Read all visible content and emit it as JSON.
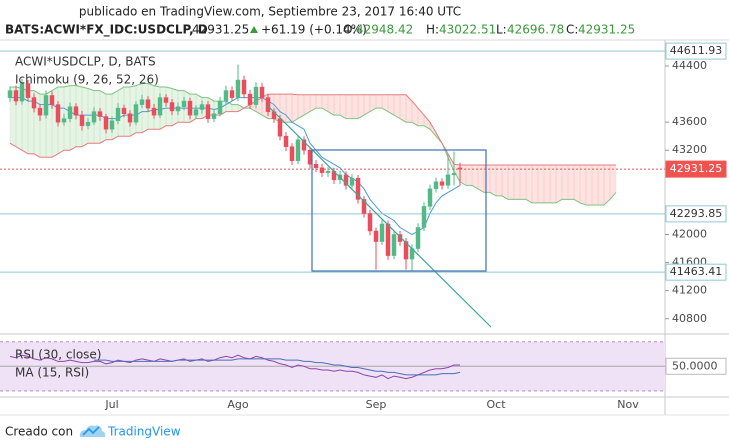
{
  "header": {
    "title": "publicado en TradingView.com, Septiembre 23, 2017 16:40 UTC",
    "symbol": "BATS:ACWI*FX_IDC:USDCLP, D",
    "last": 42931.25,
    "change": "+61.19 (+0.14%)",
    "ohlc": [
      {
        "label": "O:",
        "value": 42948.42
      },
      {
        "label": "H:",
        "value": 43022.51
      },
      {
        "label": "L:",
        "value": 42696.78
      },
      {
        "label": "C:",
        "value": 42931.25
      }
    ]
  },
  "chart_data": {
    "type": "candlestick",
    "title": "ACWI*USDCLP, D, BATS",
    "categories": [
      null,
      null,
      null,
      null,
      null,
      null,
      null,
      null,
      null,
      null,
      null,
      null,
      null,
      null,
      null,
      null,
      null,
      "Jul",
      null,
      null,
      null,
      null,
      null,
      null,
      null,
      null,
      null,
      null,
      null,
      null,
      null,
      null,
      null,
      null,
      null,
      null,
      null,
      null,
      "Ago",
      null,
      null,
      null,
      null,
      null,
      null,
      null,
      null,
      null,
      null,
      null,
      null,
      null,
      null,
      null,
      null,
      null,
      null,
      null,
      null,
      null,
      null,
      "Sep",
      null,
      null,
      null,
      null,
      null,
      null,
      null,
      null,
      null,
      null,
      null,
      null,
      null,
      null,
      null,
      null,
      null,
      null,
      null,
      "Oct",
      null,
      null,
      null,
      null,
      null,
      null,
      null,
      null,
      null,
      null,
      null,
      null,
      null,
      null,
      null,
      null,
      null,
      null,
      null,
      null,
      null,
      "Nov"
    ],
    "ohlc": [
      [
        43950,
        44110,
        43890,
        44050
      ],
      [
        44050,
        44120,
        43840,
        43900
      ],
      [
        43900,
        44220,
        43850,
        44150
      ],
      [
        44150,
        44200,
        43900,
        43950
      ],
      [
        43950,
        44010,
        43740,
        43800
      ],
      [
        43800,
        43860,
        43620,
        43700
      ],
      [
        43700,
        44050,
        43650,
        43980
      ],
      [
        43980,
        44040,
        43790,
        43850
      ],
      [
        43850,
        43900,
        43540,
        43600
      ],
      [
        43600,
        43720,
        43550,
        43650
      ],
      [
        43650,
        43880,
        43600,
        43820
      ],
      [
        43820,
        43870,
        43640,
        43700
      ],
      [
        43700,
        43760,
        43480,
        43550
      ],
      [
        43550,
        43660,
        43500,
        43600
      ],
      [
        43600,
        43810,
        43560,
        43750
      ],
      [
        43750,
        43800,
        43620,
        43680
      ],
      [
        43680,
        43720,
        43440,
        43500
      ],
      [
        43500,
        43680,
        43450,
        43620
      ],
      [
        43620,
        43870,
        43570,
        43800
      ],
      [
        43800,
        43850,
        43670,
        43720
      ],
      [
        43720,
        43770,
        43540,
        43600
      ],
      [
        43600,
        43900,
        43560,
        43850
      ],
      [
        43850,
        43990,
        43800,
        43920
      ],
      [
        43920,
        43970,
        43750,
        43800
      ],
      [
        43800,
        43860,
        43650,
        43700
      ],
      [
        43700,
        44010,
        43660,
        43950
      ],
      [
        43950,
        44000,
        43820,
        43880
      ],
      [
        43880,
        43930,
        43700,
        43760
      ],
      [
        43760,
        43880,
        43700,
        43820
      ],
      [
        43820,
        43960,
        43770,
        43900
      ],
      [
        43900,
        43950,
        43640,
        43700
      ],
      [
        43700,
        43840,
        43650,
        43780
      ],
      [
        43780,
        43910,
        43720,
        43850
      ],
      [
        43850,
        43900,
        43590,
        43650
      ],
      [
        43650,
        43790,
        43600,
        43720
      ],
      [
        43720,
        43960,
        43680,
        43900
      ],
      [
        43900,
        44120,
        43850,
        44050
      ],
      [
        44050,
        44110,
        43900,
        43950
      ],
      [
        43950,
        44420,
        43900,
        44200
      ],
      [
        44200,
        44260,
        43940,
        44000
      ],
      [
        44000,
        44060,
        43790,
        43850
      ],
      [
        43850,
        44170,
        43800,
        44100
      ],
      [
        44100,
        44160,
        43890,
        43950
      ],
      [
        43950,
        44000,
        43690,
        43750
      ],
      [
        43750,
        43800,
        43590,
        43650
      ],
      [
        43650,
        43700,
        43340,
        43400
      ],
      [
        43400,
        43460,
        43190,
        43250
      ],
      [
        43250,
        43300,
        42990,
        43050
      ],
      [
        43050,
        43410,
        43000,
        43350
      ],
      [
        43350,
        43400,
        43140,
        43200
      ],
      [
        43200,
        43250,
        42940,
        43000
      ],
      [
        43000,
        43060,
        42890,
        42950
      ],
      [
        42950,
        43010,
        42820,
        42880
      ],
      [
        42880,
        42960,
        42820,
        42900
      ],
      [
        42900,
        42950,
        42720,
        42780
      ],
      [
        42780,
        42910,
        42720,
        42850
      ],
      [
        42850,
        42900,
        42640,
        42700
      ],
      [
        42700,
        42860,
        42650,
        42800
      ],
      [
        42800,
        42850,
        42440,
        42500
      ],
      [
        42500,
        42550,
        42240,
        42300
      ],
      [
        42300,
        42350,
        41990,
        42050
      ],
      [
        42050,
        42100,
        41500,
        41900
      ],
      [
        41900,
        42210,
        41850,
        42150
      ],
      [
        42150,
        42200,
        41640,
        41700
      ],
      [
        41700,
        42060,
        41650,
        42000
      ],
      [
        42000,
        42050,
        41840,
        41900
      ],
      [
        41900,
        41950,
        41500,
        41650
      ],
      [
        41650,
        41860,
        41480,
        41800
      ],
      [
        41800,
        42160,
        41750,
        42100
      ],
      [
        42100,
        42460,
        42050,
        42400
      ],
      [
        42400,
        42710,
        42350,
        42650
      ],
      [
        42650,
        42810,
        42600,
        42750
      ],
      [
        42750,
        42800,
        42640,
        42700
      ],
      [
        42700,
        43150,
        42650,
        42850
      ],
      [
        42850,
        43180,
        42700,
        42870.06
      ],
      [
        42948.42,
        43022.51,
        42696.78,
        42931.25
      ],
      null,
      null,
      null,
      null,
      null,
      null,
      null,
      null,
      null,
      null,
      null,
      null,
      null,
      null,
      null,
      null,
      null,
      null,
      null,
      null,
      null,
      null,
      null,
      null,
      null,
      null,
      null,
      null
    ],
    "up_color": "#53b987",
    "down_color": "#eb4d5c",
    "ylim": [
      40640,
      44770
    ],
    "yticks": [
      44400,
      43600,
      43200,
      42000,
      41600,
      41200,
      40800
    ],
    "grid": false,
    "price_lines": [
      {
        "value": 44611.93,
        "color": "#8fc9d8",
        "label_fill": "#ffffff",
        "text_color": "#333333",
        "dashed": false
      },
      {
        "value": 42931.25,
        "color": "#ef5350",
        "label_fill": "#ef5350",
        "text_color": "#ffffff",
        "dashed": true
      },
      {
        "value": 42293.85,
        "color": "#8fc9d8",
        "label_fill": "#ffffff",
        "text_color": "#333333",
        "dashed": false
      },
      {
        "value": 41463.41,
        "color": "#8fc9d8",
        "label_fill": "#ffffff",
        "text_color": "#333333",
        "dashed": false
      }
    ],
    "indicator": {
      "name": "Ichimoku (9, 26, 52, 26)",
      "fill_up": "rgba(76,175,80,0.14)",
      "fill_down": "rgba(244,67,54,0.14)",
      "conversion": {
        "color": "#4a9bd8",
        "values": [
          43950,
          43950,
          43950,
          43900,
          43900,
          43850,
          43850,
          43850,
          43800,
          43800,
          43750,
          43700,
          43700,
          43700,
          43700,
          43700,
          43650,
          43650,
          43650,
          43700,
          43700,
          43700,
          43750,
          43750,
          43780,
          43780,
          43800,
          43800,
          43800,
          43800,
          43800,
          43800,
          43800,
          43800,
          43780,
          43800,
          43850,
          43900,
          43950,
          43950,
          43950,
          43950,
          43950,
          43900,
          43850,
          43750,
          43700,
          43600,
          43550,
          43500,
          43300,
          43200,
          43100,
          43050,
          43000,
          42950,
          42850,
          42800,
          42750,
          42650,
          42500,
          42400,
          42300,
          42250,
          42200,
          42100,
          42050,
          42000,
          42050,
          42100,
          42300,
          42450,
          42550,
          42600,
          42650,
          42700,
          null,
          null,
          null,
          null,
          null,
          null,
          null,
          null,
          null,
          null,
          null,
          null,
          null,
          null,
          null,
          null,
          null,
          null,
          null,
          null,
          null,
          null,
          null,
          null,
          null,
          null,
          null,
          null
        ]
      },
      "lead_a": {
        "color": "#7cc57c",
        "values": [
          44100,
          44100,
          44080,
          44050,
          44050,
          44000,
          44000,
          44050,
          44100,
          44100,
          44120,
          44120,
          44100,
          44080,
          44050,
          44050,
          44000,
          44000,
          44050,
          44100,
          44100,
          44120,
          44150,
          44150,
          44120,
          44100,
          44100,
          44080,
          44050,
          44050,
          44000,
          44000,
          43950,
          43950,
          43900,
          43900,
          43900,
          43850,
          43850,
          43800,
          43800,
          43750,
          43700,
          43650,
          43650,
          43600,
          43600,
          43600,
          43650,
          43700,
          43750,
          43800,
          43800,
          43750,
          43700,
          43700,
          43650,
          43650,
          43650,
          43700,
          43750,
          43800,
          43800,
          43750,
          43700,
          43650,
          43600,
          43600,
          43550,
          43550,
          43500,
          43400,
          43300,
          43100,
          42900,
          42750,
          42700,
          42700,
          42650,
          42600,
          42600,
          42550,
          42550,
          42500,
          42500,
          42500,
          42500,
          42450,
          42450,
          42450,
          42450,
          42450,
          42500,
          42500,
          42500,
          42450,
          42420,
          42420,
          42420,
          42420,
          42500,
          42600,
          null,
          null
        ]
      },
      "lead_b": {
        "color": "#e57b7b",
        "values": [
          43300,
          43250,
          43200,
          43150,
          43150,
          43100,
          43100,
          43100,
          43150,
          43200,
          43200,
          43250,
          43250,
          43300,
          43300,
          43300,
          43350,
          43350,
          43400,
          43400,
          43400,
          43450,
          43450,
          43500,
          43500,
          43500,
          43550,
          43550,
          43600,
          43600,
          43600,
          43650,
          43650,
          43700,
          43700,
          43700,
          43750,
          43750,
          43750,
          43800,
          43850,
          43900,
          43950,
          44000,
          44000,
          44000,
          44000,
          44000,
          43990,
          43990,
          43990,
          43990,
          43990,
          43990,
          43990,
          43990,
          43990,
          43990,
          43990,
          43990,
          43990,
          43990,
          43990,
          43990,
          43990,
          43990,
          43990,
          43900,
          43800,
          43700,
          43600,
          43450,
          43300,
          43150,
          43000,
          42990,
          42990,
          42990,
          42990,
          42990,
          42990,
          42990,
          42990,
          42990,
          42990,
          42990,
          42990,
          42990,
          42990,
          42990,
          42990,
          42990,
          42990,
          42990,
          42990,
          42990,
          42990,
          42990,
          42990,
          42990,
          42990,
          42990,
          null,
          null
        ]
      }
    },
    "rsi": {
      "type": "line",
      "ylim": [
        25,
        73
      ],
      "yticks": [
        {
          "value": 50,
          "label": "50.0000"
        }
      ],
      "band": [
        30,
        70
      ],
      "band_color": "#efe1f6",
      "series": [
        {
          "name": "RSI (30, close)",
          "color": "#8e44ad",
          "values": [
            58,
            57,
            59,
            58,
            56,
            55,
            57,
            56,
            54,
            54,
            55,
            54,
            53,
            53,
            54,
            54,
            52,
            53,
            55,
            54,
            53,
            55,
            56,
            55,
            54,
            56,
            55,
            54,
            55,
            56,
            54,
            55,
            56,
            54,
            55,
            57,
            58,
            57,
            59,
            57,
            56,
            58,
            57,
            55,
            54,
            52,
            51,
            49,
            51,
            50,
            48,
            48,
            47,
            47,
            46,
            47,
            46,
            46,
            45,
            43,
            42,
            41,
            43,
            40,
            42,
            41,
            40,
            41,
            43,
            45,
            47,
            48,
            48,
            49,
            51,
            51,
            null,
            null,
            null,
            null,
            null,
            null,
            null,
            null,
            null,
            null,
            null,
            null,
            null,
            null,
            null,
            null,
            null,
            null,
            null,
            null,
            null,
            null,
            null,
            null,
            null,
            null,
            null,
            null
          ]
        },
        {
          "name": "MA (15, RSI)",
          "color": "#4a6fb5",
          "values": [
            null,
            null,
            null,
            null,
            null,
            null,
            null,
            null,
            null,
            null,
            null,
            null,
            null,
            null,
            55,
            55,
            55,
            54,
            54,
            54,
            54,
            54,
            54,
            54,
            54,
            54,
            54,
            54,
            55,
            55,
            55,
            55,
            55,
            55,
            55,
            55,
            55,
            55,
            56,
            56,
            56,
            56,
            56,
            56,
            56,
            56,
            55,
            55,
            55,
            54,
            54,
            53,
            53,
            52,
            51,
            51,
            50,
            49,
            49,
            48,
            47,
            46,
            46,
            45,
            45,
            44,
            43,
            43,
            43,
            43,
            43,
            43,
            44,
            44,
            44,
            45,
            null,
            null,
            null,
            null,
            null,
            null,
            null,
            null,
            null,
            null,
            null,
            null,
            null,
            null,
            null,
            null,
            null,
            null,
            null,
            null,
            null,
            null,
            null,
            null,
            null,
            null,
            null,
            null
          ]
        }
      ]
    }
  },
  "footer": {
    "text": "Creado con",
    "brand": "TradingView"
  }
}
